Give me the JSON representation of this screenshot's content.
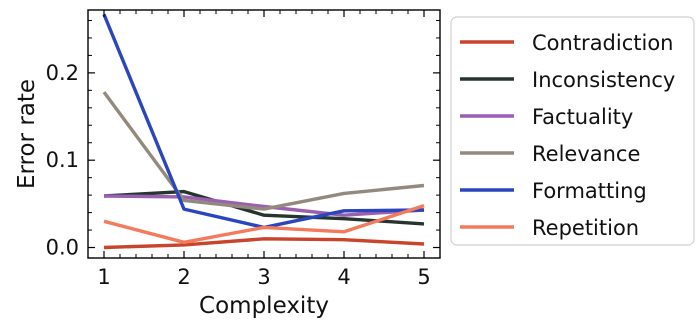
{
  "chart_data": {
    "type": "line",
    "xlabel": "Complexity",
    "ylabel": "Error rate",
    "x": [
      1,
      2,
      3,
      4,
      5
    ],
    "xlim": [
      0.8,
      5.2
    ],
    "ylim": [
      -0.012,
      0.272
    ],
    "xticks": [
      "1",
      "2",
      "3",
      "4",
      "5"
    ],
    "yticks": [
      {
        "value": 0.0,
        "label": "0.0"
      },
      {
        "value": 0.1,
        "label": "0.1"
      },
      {
        "value": 0.2,
        "label": "0.2"
      }
    ],
    "grid": false,
    "legend_position": "outside-right",
    "series": [
      {
        "name": "Contradiction",
        "color": "#c8442c",
        "values": [
          0.0,
          0.003,
          0.01,
          0.009,
          0.004
        ]
      },
      {
        "name": "Inconsistency",
        "color": "#26362f",
        "values": [
          0.059,
          0.064,
          0.037,
          0.033,
          0.027
        ]
      },
      {
        "name": "Factuality",
        "color": "#9a5fb0",
        "values": [
          0.059,
          0.058,
          0.047,
          0.037,
          0.043
        ]
      },
      {
        "name": "Relevance",
        "color": "#938a7d",
        "values": [
          0.178,
          0.054,
          0.044,
          0.062,
          0.071
        ]
      },
      {
        "name": "Formatting",
        "color": "#2b46bd",
        "values": [
          0.267,
          0.044,
          0.023,
          0.042,
          0.043
        ]
      },
      {
        "name": "Repetition",
        "color": "#f47a5e",
        "values": [
          0.03,
          0.006,
          0.023,
          0.018,
          0.048
        ]
      }
    ]
  }
}
